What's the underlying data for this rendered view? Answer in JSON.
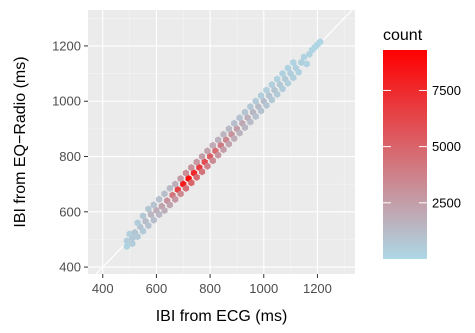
{
  "chart_data": {
    "type": "hexbin",
    "xlabel": "IBI from ECG (ms)",
    "ylabel": "IBI from EQ−Radio (ms)",
    "xlim": [
      345,
      1340
    ],
    "ylim": [
      375,
      1330
    ],
    "x_ticks": [
      400,
      600,
      800,
      1000,
      1200
    ],
    "y_ticks": [
      400,
      600,
      800,
      1000,
      1200
    ],
    "grid": true,
    "reference_line": "y = x",
    "legend": {
      "title": "count",
      "placement": "right",
      "range": [
        0,
        9300
      ],
      "ticks": [
        2500,
        5000,
        7500
      ],
      "color_low": "#add8e6",
      "color_high": "#ff0000"
    },
    "hex_bins": [
      [
        490,
        475,
        200
      ],
      [
        490,
        495,
        400
      ],
      [
        510,
        485,
        500
      ],
      [
        510,
        505,
        700
      ],
      [
        500,
        520,
        400
      ],
      [
        520,
        525,
        800
      ],
      [
        530,
        510,
        600
      ],
      [
        540,
        545,
        900
      ],
      [
        530,
        560,
        500
      ],
      [
        550,
        530,
        600
      ],
      [
        560,
        565,
        1200
      ],
      [
        550,
        585,
        700
      ],
      [
        570,
        550,
        900
      ],
      [
        580,
        590,
        1500
      ],
      [
        570,
        610,
        800
      ],
      [
        590,
        570,
        1100
      ],
      [
        600,
        605,
        1800
      ],
      [
        590,
        625,
        900
      ],
      [
        610,
        590,
        1400
      ],
      [
        620,
        620,
        2300
      ],
      [
        610,
        645,
        1000
      ],
      [
        630,
        605,
        1800
      ],
      [
        640,
        640,
        3000
      ],
      [
        630,
        665,
        1100
      ],
      [
        650,
        625,
        2200
      ],
      [
        660,
        660,
        4200
      ],
      [
        650,
        685,
        1300
      ],
      [
        670,
        645,
        2800
      ],
      [
        680,
        680,
        6500
      ],
      [
        670,
        700,
        1800
      ],
      [
        690,
        665,
        3500
      ],
      [
        700,
        700,
        8200
      ],
      [
        690,
        720,
        2600
      ],
      [
        710,
        685,
        4500
      ],
      [
        720,
        720,
        9000
      ],
      [
        710,
        740,
        3200
      ],
      [
        730,
        705,
        5000
      ],
      [
        740,
        740,
        7600
      ],
      [
        730,
        760,
        3000
      ],
      [
        750,
        725,
        4800
      ],
      [
        760,
        760,
        6800
      ],
      [
        750,
        780,
        2800
      ],
      [
        770,
        745,
        4300
      ],
      [
        780,
        780,
        6000
      ],
      [
        770,
        800,
        2500
      ],
      [
        790,
        765,
        3800
      ],
      [
        800,
        800,
        5200
      ],
      [
        790,
        820,
        2300
      ],
      [
        810,
        785,
        3300
      ],
      [
        820,
        820,
        4600
      ],
      [
        810,
        840,
        2000
      ],
      [
        830,
        805,
        2900
      ],
      [
        840,
        840,
        4000
      ],
      [
        830,
        860,
        1700
      ],
      [
        850,
        825,
        2500
      ],
      [
        860,
        860,
        3500
      ],
      [
        850,
        880,
        1500
      ],
      [
        870,
        845,
        2200
      ],
      [
        880,
        880,
        3000
      ],
      [
        870,
        900,
        1300
      ],
      [
        890,
        865,
        1900
      ],
      [
        900,
        900,
        2500
      ],
      [
        890,
        920,
        1100
      ],
      [
        910,
        885,
        1600
      ],
      [
        920,
        920,
        2100
      ],
      [
        910,
        940,
        900
      ],
      [
        930,
        905,
        1400
      ],
      [
        940,
        940,
        1800
      ],
      [
        930,
        960,
        800
      ],
      [
        950,
        925,
        1200
      ],
      [
        960,
        960,
        1500
      ],
      [
        950,
        980,
        700
      ],
      [
        970,
        945,
        1000
      ],
      [
        980,
        980,
        1300
      ],
      [
        970,
        1000,
        600
      ],
      [
        990,
        965,
        900
      ],
      [
        1000,
        1000,
        1100
      ],
      [
        990,
        1020,
        500
      ],
      [
        1010,
        985,
        800
      ],
      [
        1020,
        1020,
        900
      ],
      [
        1010,
        1040,
        400
      ],
      [
        1030,
        1005,
        700
      ],
      [
        1040,
        1040,
        800
      ],
      [
        1030,
        1060,
        400
      ],
      [
        1050,
        1025,
        600
      ],
      [
        1060,
        1060,
        700
      ],
      [
        1050,
        1080,
        300
      ],
      [
        1070,
        1045,
        500
      ],
      [
        1080,
        1080,
        600
      ],
      [
        1070,
        1100,
        300
      ],
      [
        1090,
        1065,
        400
      ],
      [
        1100,
        1100,
        500
      ],
      [
        1090,
        1120,
        250
      ],
      [
        1110,
        1085,
        350
      ],
      [
        1120,
        1120,
        400
      ],
      [
        1110,
        1140,
        200
      ],
      [
        1130,
        1105,
        300
      ],
      [
        1140,
        1140,
        350
      ],
      [
        1150,
        1160,
        250
      ],
      [
        1160,
        1135,
        200
      ],
      [
        1170,
        1170,
        250
      ],
      [
        1180,
        1185,
        200
      ],
      [
        1190,
        1195,
        150
      ],
      [
        1200,
        1205,
        120
      ],
      [
        1210,
        1215,
        80
      ]
    ]
  }
}
